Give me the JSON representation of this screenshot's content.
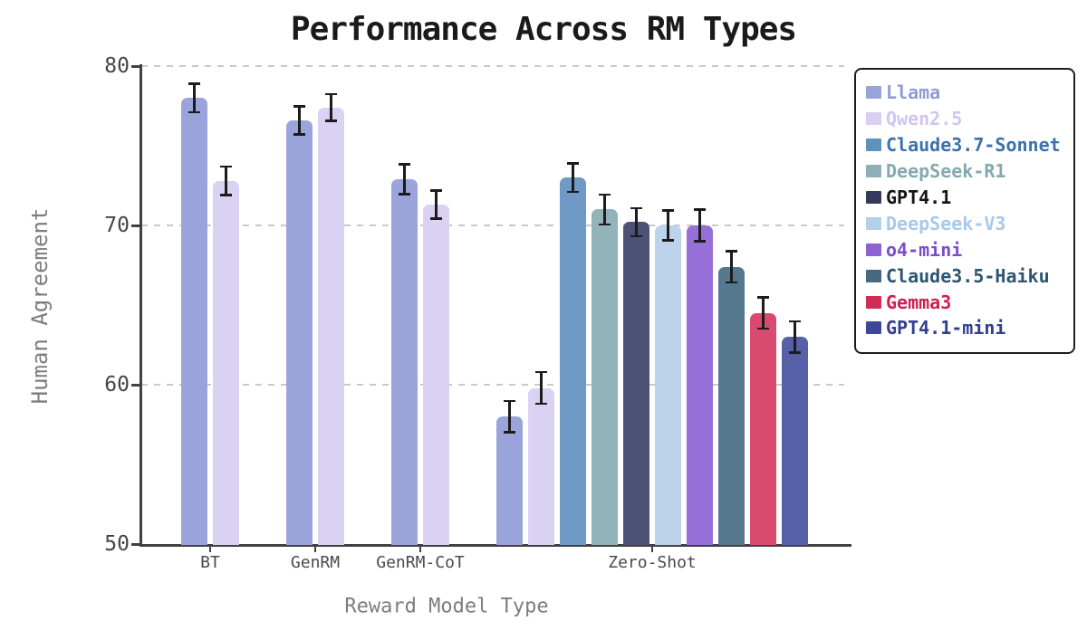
{
  "chart_data": {
    "type": "bar",
    "title": "Performance Across RM Types",
    "xlabel": "Reward Model Type",
    "ylabel": "Human Agreement",
    "ylim": [
      50,
      80
    ],
    "yticks": [
      50,
      60,
      70,
      80
    ],
    "grid": {
      "axis": "y",
      "style": "dashed",
      "color": "#c9c9c9",
      "gridline_levels": [
        60,
        70,
        80
      ]
    },
    "legend": {
      "position": "upper right",
      "border_color": "#1c1c1c",
      "background": "#ffffff"
    },
    "error_bar_color": "#1c1c1c",
    "categories": [
      "BT",
      "GenRM",
      "GenRM-CoT",
      "Zero-Shot"
    ],
    "series": [
      {
        "name": "Llama",
        "color": "#9aa4db",
        "swatch": "#99a3d8",
        "text_color": "#8e9bd8",
        "values": [
          78.0,
          76.6,
          72.9,
          58.0
        ],
        "errors": [
          0.9,
          0.9,
          0.95,
          1.0
        ]
      },
      {
        "name": "Qwen2.5",
        "color": "#d9d2f2",
        "swatch": "#d8d0f1",
        "text_color": "#cfc5ef",
        "values": [
          72.8,
          77.4,
          71.3,
          59.8
        ],
        "errors": [
          0.9,
          0.85,
          0.9,
          1.0
        ]
      },
      {
        "name": "Claude3.7-Sonnet",
        "color": "#6f9ac5",
        "swatch": "#5d92bd",
        "text_color": "#3a72ab",
        "values": [
          null,
          null,
          null,
          73.0
        ],
        "errors": [
          null,
          null,
          null,
          0.9
        ]
      },
      {
        "name": "DeepSeek-R1",
        "color": "#92b3ba",
        "swatch": "#8db0b6",
        "text_color": "#84a9b1",
        "values": [
          null,
          null,
          null,
          71.0
        ],
        "errors": [
          null,
          null,
          null,
          0.95
        ]
      },
      {
        "name": "GPT4.1",
        "color": "#4c5175",
        "swatch": "#343a5e",
        "text_color": "#141414",
        "values": [
          null,
          null,
          null,
          70.2
        ],
        "errors": [
          null,
          null,
          null,
          0.9
        ]
      },
      {
        "name": "DeepSeek-V3",
        "color": "#bdd3ec",
        "swatch": "#b5cfe9",
        "text_color": "#a9c8e8",
        "values": [
          null,
          null,
          null,
          70.0
        ],
        "errors": [
          null,
          null,
          null,
          0.95
        ]
      },
      {
        "name": "o4-mini",
        "color": "#9770d7",
        "swatch": "#8b63d3",
        "text_color": "#7a4cd0",
        "values": [
          null,
          null,
          null,
          70.0
        ],
        "errors": [
          null,
          null,
          null,
          1.0
        ]
      },
      {
        "name": "Claude3.5-Haiku",
        "color": "#56788f",
        "swatch": "#47687f",
        "text_color": "#2c5570",
        "values": [
          null,
          null,
          null,
          67.4
        ],
        "errors": [
          null,
          null,
          null,
          1.0
        ]
      },
      {
        "name": "Gemma3",
        "color": "#d84a6e",
        "swatch": "#d12c55",
        "text_color": "#cf2150",
        "values": [
          null,
          null,
          null,
          64.5
        ],
        "errors": [
          null,
          null,
          null,
          1.0
        ]
      },
      {
        "name": "GPT4.1-mini",
        "color": "#5660a8",
        "swatch": "#3e4896",
        "text_color": "#333f8f",
        "values": [
          null,
          null,
          null,
          63.0
        ],
        "errors": [
          null,
          null,
          null,
          1.0
        ]
      }
    ]
  }
}
